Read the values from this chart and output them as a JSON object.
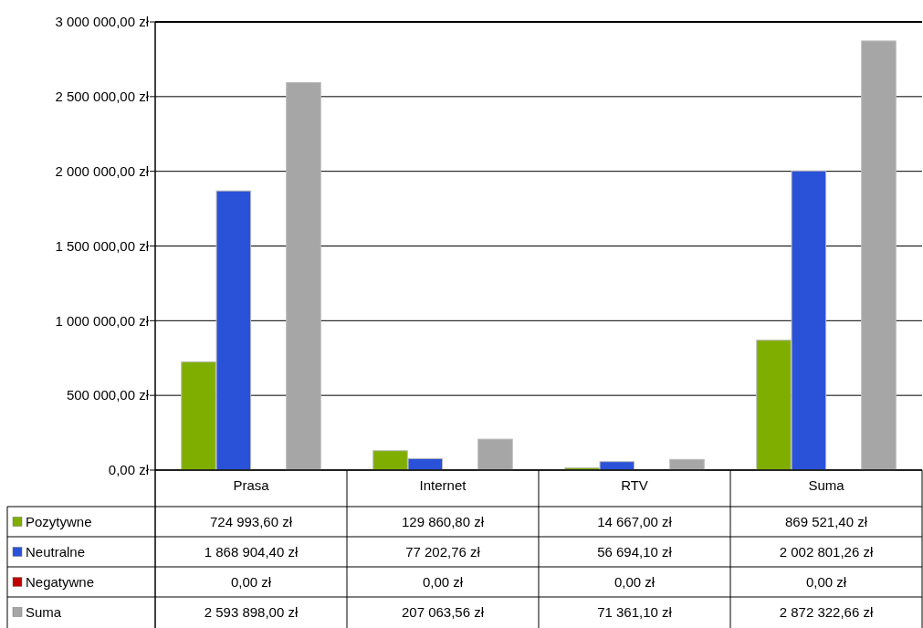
{
  "chart_data": {
    "type": "bar",
    "categories": [
      "Prasa",
      "Internet",
      "RTV",
      "Suma"
    ],
    "series": [
      {
        "name": "Pozytywne",
        "color": "#7fae00",
        "values": [
          724993.6,
          129860.8,
          14667.0,
          869521.4
        ],
        "value_labels": [
          "724 993,60 zł",
          "129 860,80 zł",
          "14 667,00 zł",
          "869 521,40 zł"
        ]
      },
      {
        "name": "Neutralne",
        "color": "#2a52d8",
        "values": [
          1868904.4,
          77202.76,
          56694.1,
          2002801.26
        ],
        "value_labels": [
          "1 868 904,40 zł",
          "77 202,76 zł",
          "56 694,10 zł",
          "2 002 801,26 zł"
        ]
      },
      {
        "name": "Negatywne",
        "color": "#c00000",
        "values": [
          0,
          0,
          0,
          0
        ],
        "value_labels": [
          "0,00 zł",
          "0,00 zł",
          "0,00 zł",
          "0,00 zł"
        ]
      },
      {
        "name": "Suma",
        "color": "#a6a6a6",
        "values": [
          2593898.0,
          207063.56,
          71361.1,
          2872322.66
        ],
        "value_labels": [
          "2 593 898,00 zł",
          "207 063,56 zł",
          "71 361,10 zł",
          "2 872 322,66 zł"
        ]
      }
    ],
    "ylim": [
      0,
      3000000
    ],
    "yticks": [
      {
        "value": 0,
        "label": "0,00 zł"
      },
      {
        "value": 500000,
        "label": "500 000,00 zł"
      },
      {
        "value": 1000000,
        "label": "1 000 000,00 zł"
      },
      {
        "value": 1500000,
        "label": "1 500 000,00 zł"
      },
      {
        "value": 2000000,
        "label": "2 000 000,00 zł"
      },
      {
        "value": 2500000,
        "label": "2 500 000,00 zł"
      },
      {
        "value": 3000000,
        "label": "3 000 000,00 zł"
      }
    ],
    "grid": "y",
    "legend": "bottom left",
    "data_labels": true
  }
}
